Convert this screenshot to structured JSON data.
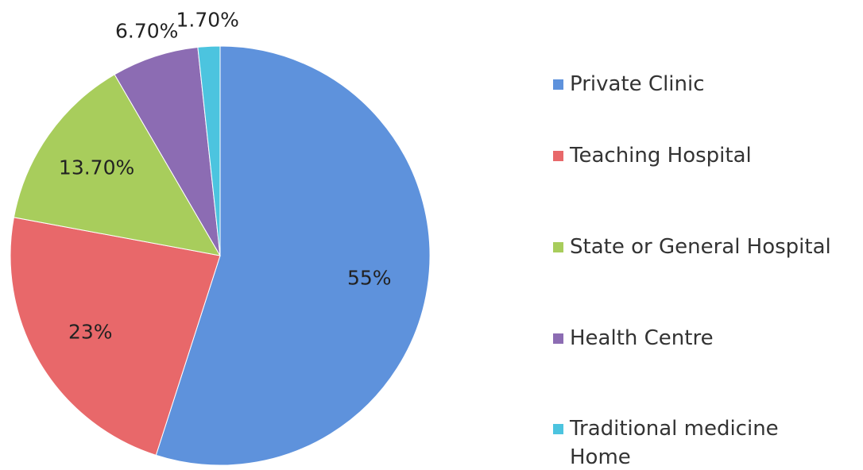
{
  "chart_data": {
    "type": "pie",
    "categories": [
      "Private Clinic",
      "Teaching Hospital",
      "State or General Hospital",
      "Health Centre",
      "Traditional medicine Home"
    ],
    "values": [
      55,
      23,
      13.7,
      6.7,
      1.7
    ],
    "value_labels": [
      "55%",
      "23%",
      "13.70%",
      "6.70%",
      "1.70%"
    ],
    "colors": [
      "#5e92dc",
      "#e8686a",
      "#a8cd5c",
      "#8c6cb3",
      "#4cc4df"
    ],
    "legend": "right"
  }
}
